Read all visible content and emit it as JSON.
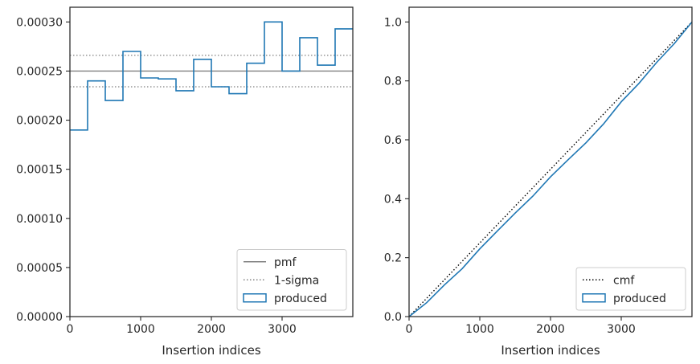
{
  "chart_data": [
    {
      "type": "histogram-step",
      "xlabel": "Insertion indices",
      "ylabel": "",
      "xlim": [
        0,
        4000
      ],
      "ylim": [
        0,
        0.000315
      ],
      "xticks": [
        0,
        1000,
        2000,
        3000
      ],
      "xtick_labels": [
        "0",
        "1000",
        "2000",
        "3000"
      ],
      "yticks": [
        0,
        5e-05,
        0.0001,
        0.00015,
        0.0002,
        0.00025,
        0.0003
      ],
      "ytick_labels": [
        "0.00000",
        "0.00005",
        "0.00010",
        "0.00015",
        "0.00020",
        "0.00025",
        "0.00030"
      ],
      "grid": false,
      "legend_position": "bottom-right",
      "legend": [
        "pmf",
        "1-sigma",
        "produced"
      ],
      "reference_lines": [
        {
          "name": "pmf",
          "y": 0.00025,
          "style": "solid",
          "color": "#808080"
        },
        {
          "name": "1-sigma",
          "y": 0.000266,
          "style": "dotted",
          "color": "#808080"
        },
        {
          "name": "1-sigma",
          "y": 0.000234,
          "style": "dotted",
          "color": "#808080"
        }
      ],
      "series": [
        {
          "name": "produced",
          "color": "#1f77b4",
          "bin_edges": [
            0,
            250,
            500,
            750,
            1000,
            1250,
            1500,
            1750,
            2000,
            2250,
            2500,
            2750,
            3000,
            3250,
            3500,
            3750,
            4000
          ],
          "values": [
            0.00019,
            0.00024,
            0.00022,
            0.00027,
            0.000243,
            0.000242,
            0.00023,
            0.000262,
            0.000234,
            0.000227,
            0.000258,
            0.0003,
            0.00025,
            0.000284,
            0.000256,
            0.000293
          ]
        }
      ]
    },
    {
      "type": "line",
      "xlabel": "Insertion indices",
      "ylabel": "",
      "xlim": [
        0,
        4000
      ],
      "ylim": [
        0,
        1.05
      ],
      "xticks": [
        0,
        1000,
        2000,
        3000
      ],
      "xtick_labels": [
        "0",
        "1000",
        "2000",
        "3000"
      ],
      "yticks": [
        0,
        0.2,
        0.4,
        0.6,
        0.8,
        1.0
      ],
      "ytick_labels": [
        "0.0",
        "0.2",
        "0.4",
        "0.6",
        "0.8",
        "1.0"
      ],
      "grid": false,
      "legend_position": "bottom-right",
      "legend": [
        "cmf",
        "produced"
      ],
      "series": [
        {
          "name": "cmf",
          "style": "dotted",
          "color": "#000000",
          "x": [
            0,
            4000
          ],
          "y": [
            0,
            1.0
          ]
        },
        {
          "name": "produced",
          "style": "solid",
          "color": "#1f77b4",
          "x": [
            0,
            250,
            500,
            750,
            1000,
            1250,
            1500,
            1750,
            2000,
            2250,
            2500,
            2750,
            3000,
            3250,
            3500,
            3750,
            4000
          ],
          "y": [
            0,
            0.0475,
            0.1075,
            0.1625,
            0.23,
            0.2908,
            0.3513,
            0.4088,
            0.4743,
            0.5328,
            0.5895,
            0.654,
            0.729,
            0.7915,
            0.8625,
            0.9265,
            1.0
          ]
        }
      ]
    }
  ]
}
